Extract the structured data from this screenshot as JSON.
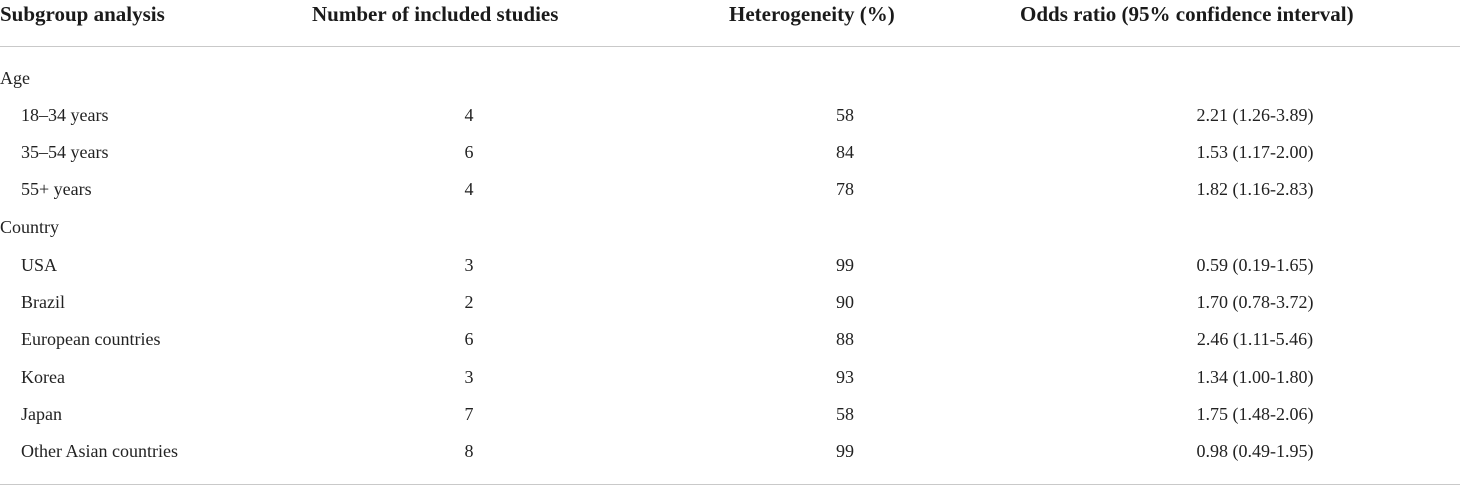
{
  "headers": {
    "subgroup": "Subgroup analysis",
    "studies": "Number of included studies",
    "heterogeneity": "Heterogeneity (%)",
    "odds_ratio": "Odds ratio (95% confidence interval)"
  },
  "groups": {
    "age": {
      "label": "Age",
      "rows": [
        {
          "label": "18–34 years",
          "studies": "4",
          "heterogeneity": "58",
          "odds_ratio": "2.21 (1.26-3.89)"
        },
        {
          "label": "35–54 years",
          "studies": "6",
          "heterogeneity": "84",
          "odds_ratio": "1.53 (1.17-2.00)"
        },
        {
          "label": "55+ years",
          "studies": "4",
          "heterogeneity": "78",
          "odds_ratio": "1.82 (1.16-2.83)"
        }
      ]
    },
    "country": {
      "label": "Country",
      "rows": [
        {
          "label": "USA",
          "studies": "3",
          "heterogeneity": "99",
          "odds_ratio": "0.59 (0.19-1.65)"
        },
        {
          "label": "Brazil",
          "studies": "2",
          "heterogeneity": "90",
          "odds_ratio": "1.70 (0.78-3.72)"
        },
        {
          "label": "European countries",
          "studies": "6",
          "heterogeneity": "88",
          "odds_ratio": "2.46 (1.11-5.46)"
        },
        {
          "label": "Korea",
          "studies": "3",
          "heterogeneity": "93",
          "odds_ratio": "1.34 (1.00-1.80)"
        },
        {
          "label": "Japan",
          "studies": "7",
          "heterogeneity": "58",
          "odds_ratio": "1.75 (1.48-2.06)"
        },
        {
          "label": "Other Asian countries",
          "studies": "8",
          "heterogeneity": "99",
          "odds_ratio": "0.98 (0.49-1.95)"
        }
      ]
    }
  }
}
